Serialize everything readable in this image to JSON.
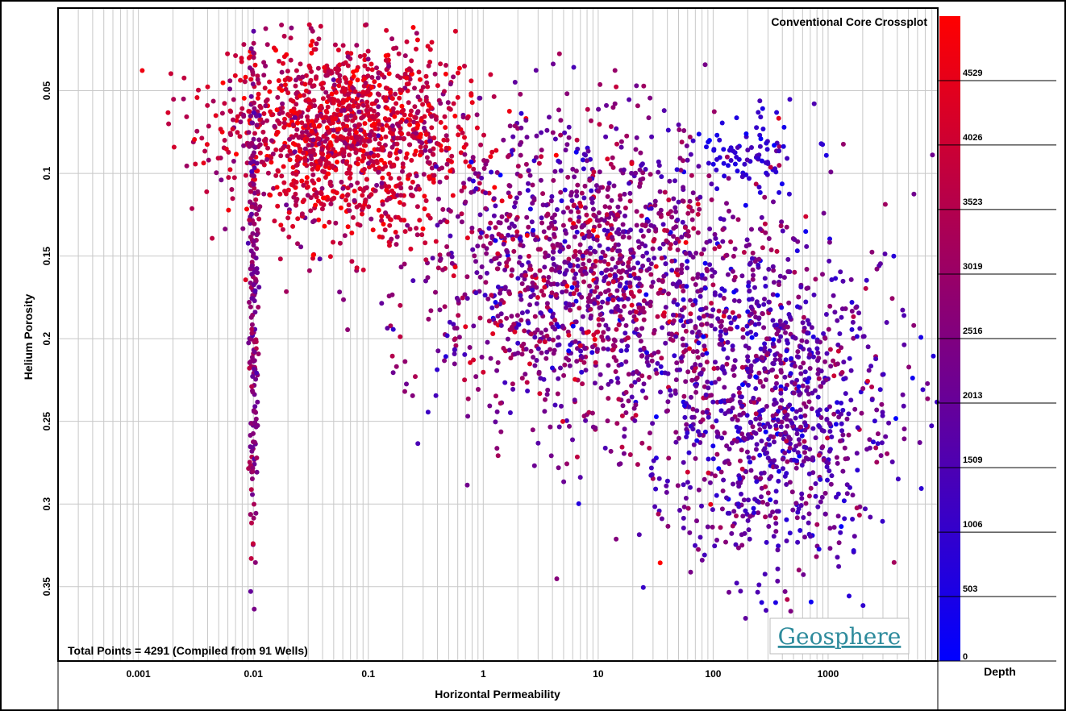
{
  "chart_data": {
    "type": "scatter",
    "title": "Conventional Core Crossplot",
    "xlabel": "Horizontal Permeability",
    "ylabel": "Helium Porosity",
    "xscale": "log",
    "xlim": [
      0.0002,
      9000
    ],
    "ylim": [
      0.0,
      0.395
    ],
    "y_inverted": true,
    "x_ticks": [
      "0.001",
      "0.01",
      "0.1",
      "1",
      "10",
      "100",
      "1000"
    ],
    "y_ticks": [
      "0.05",
      "0.1",
      "0.15",
      "0.2",
      "0.25",
      "0.3",
      "0.35"
    ],
    "grid": true,
    "annotation": "Total Points = 4291 (Compiled from 91 Wells)",
    "watermark": "Geosphere",
    "colorbar": {
      "label": "Depth",
      "ticks": [
        "4529",
        "4026",
        "3523",
        "3019",
        "2516",
        "2013",
        "1509",
        "1006",
        "503",
        "0"
      ],
      "min": 0,
      "max": 5032,
      "color_low": "#0000ff",
      "color_high": "#ff0000"
    },
    "point_clusters": [
      {
        "x_log_center": -1.2,
        "x_log_spread": 0.55,
        "y_center": 0.075,
        "y_spread": 0.03,
        "count": 1400,
        "depth_center": 3900,
        "depth_spread": 700
      },
      {
        "x_log_center": 0.9,
        "x_log_spread": 0.7,
        "y_center": 0.16,
        "y_spread": 0.045,
        "count": 1500,
        "depth_center": 2500,
        "depth_spread": 900
      },
      {
        "x_log_center": 2.5,
        "x_log_spread": 0.55,
        "y_center": 0.24,
        "y_spread": 0.05,
        "count": 1100,
        "depth_center": 1900,
        "depth_spread": 800
      },
      {
        "x_log_center": 2.3,
        "x_log_spread": 0.25,
        "y_center": 0.085,
        "y_spread": 0.012,
        "count": 80,
        "depth_center": 900,
        "depth_spread": 400
      },
      {
        "x_log_center": -2.0,
        "x_log_spread": 0.02,
        "y_center": 0.17,
        "y_spread": 0.08,
        "count": 211,
        "depth_center": 2700,
        "depth_spread": 500
      }
    ],
    "colors": {
      "frame": "#000000",
      "grid": "#c8c8c8",
      "background": "#ffffff"
    }
  }
}
